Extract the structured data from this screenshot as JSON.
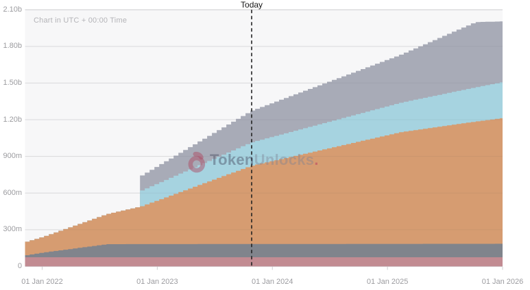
{
  "header": {
    "timezone_note": "Chart in UTC + 00:00 Time",
    "today_label": "Today"
  },
  "watermark": {
    "icon": "lock-icon",
    "brand_bold": "Token",
    "brand_light": "Unlocks",
    "brand_dot": ".",
    "accent_color": "#bb405e"
  },
  "theme": {
    "page_bg": "#ffffff",
    "plot_bg": "#f7f7f8",
    "grid_color": "#e5e5e7",
    "grid_top_color": "#d8d8da",
    "grid_overlay_color": "rgba(60,60,70,0.07)",
    "axis_text_color": "#9b9b9f",
    "tick_color": "#cfcfd2",
    "today_line_color": "#222222"
  },
  "chart_data": {
    "type": "area",
    "subtype": "stacked-stepped-unlock-schedule",
    "value_unit": "tokens (m = millions, b = billions)",
    "x_axis": {
      "tick_labels": [
        "01 Jan 2022",
        "01 Jan 2023",
        "01 Jan 2024",
        "01 Jan 2025",
        "01 Jan 2026"
      ],
      "tick_years": [
        2022,
        2023,
        2024,
        2025,
        2026
      ],
      "domain_years": [
        2021.85,
        2026.0
      ]
    },
    "y_axis": {
      "tick_labels": [
        "2.10b",
        "1.80b",
        "1.50b",
        "1.20b",
        "900m",
        "600m",
        "300m",
        "0"
      ],
      "tick_values_m": [
        2100,
        1800,
        1500,
        1200,
        900,
        600,
        300,
        0
      ],
      "domain_m": [
        0,
        2100
      ],
      "grid": true
    },
    "today_marker": {
      "label": "Today",
      "x_year": 2023.82,
      "style": "dashed-vertical"
    },
    "steps_per_year": 24,
    "legend": "none (unlabeled allocations, bottom to top)",
    "series": [
      {
        "name": "allocation-rose",
        "color": "#c28b92",
        "anchors_year_value_m": [
          [
            2021.85,
            75
          ],
          [
            2026.0,
            75
          ]
        ]
      },
      {
        "name": "allocation-dark-gray",
        "color": "#80848c",
        "anchors_year_value_m": [
          [
            2021.85,
            17
          ],
          [
            2022.0,
            39
          ],
          [
            2022.55,
            107
          ],
          [
            2026.0,
            110
          ]
        ]
      },
      {
        "name": "allocation-orange",
        "color": "#d69c71",
        "anchors_year_value_m": [
          [
            2021.85,
            110
          ],
          [
            2022.0,
            130
          ],
          [
            2022.85,
            310
          ],
          [
            2023.8,
            640
          ],
          [
            2025.1,
            914
          ],
          [
            2025.75,
            1000
          ],
          [
            2026.0,
            1030
          ]
        ]
      },
      {
        "name": "allocation-light-blue",
        "color": "#a6d3e0",
        "anchors_year_value_m": [
          [
            2022.85,
            129
          ],
          [
            2023.8,
            191
          ],
          [
            2025.1,
            241
          ],
          [
            2026.0,
            295
          ]
        ]
      },
      {
        "name": "allocation-blue-gray",
        "color": "#a8abb7",
        "anchors_year_value_m": [
          [
            2022.85,
            123
          ],
          [
            2023.8,
            258
          ],
          [
            2025.1,
            393
          ],
          [
            2025.75,
            534
          ],
          [
            2026.0,
            495
          ]
        ]
      }
    ],
    "observed_totals_m": {
      "at_2021_85": 202,
      "at_2022_85_after_cliff": 762,
      "at_today": 1250,
      "at_2026": 2005
    }
  }
}
